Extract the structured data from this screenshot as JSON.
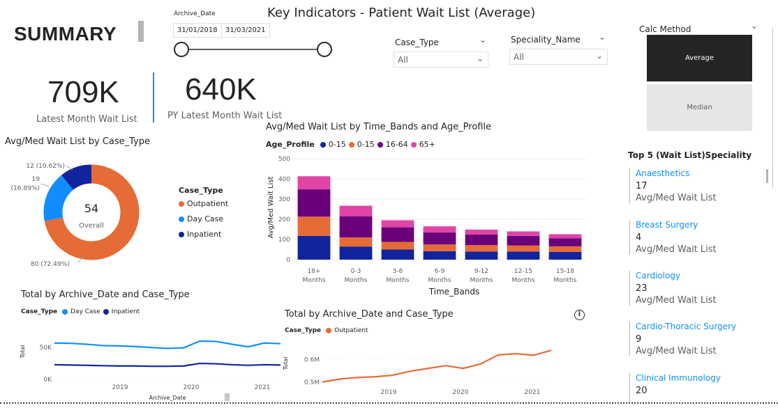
{
  "page": {
    "title": "Key Indicators - Patient Wait List (Average)",
    "summary": "SUMMARY"
  },
  "kpis": {
    "latest_value": "709K",
    "latest_label": "Latest Month Wait List",
    "py_value": "640K",
    "py_label": "PY Latest Month Wait List"
  },
  "archive_date": {
    "label": "Archive_Date",
    "start": "31/01/2018",
    "end": "31/03/2021"
  },
  "case_type_slicer": {
    "label": "Case_Type",
    "value": "All"
  },
  "speciality_slicer": {
    "label": "Speciality_Name",
    "value": "All"
  },
  "calc_method": {
    "label": "Calc Method",
    "options": [
      "Average",
      "Median"
    ],
    "selected": "Average"
  },
  "colors": {
    "outpatient": "#e66c37",
    "day_case": "#118dff",
    "inpatient": "#12239e",
    "age_0_15_a": "#12239e",
    "age_0_15_b": "#e66c37",
    "age_16_64": "#6b007b",
    "age_65_plus": "#e044a7"
  },
  "donut": {
    "title": "Avg/Med Wait List by Case_Type",
    "center_value": "54",
    "center_label": "Overall",
    "legend_title": "Case_Type",
    "legend": [
      "Outpatient",
      "Day Case",
      "Inpatient"
    ],
    "labels": [
      "12 (10.62%)",
      "19",
      "(16.89%)",
      "80 (72.49%)"
    ]
  },
  "top5": {
    "title": "Top 5 (Wait List)Speciality",
    "metric_label": "Avg/Med Wait List",
    "items": [
      {
        "name": "Anaesthetics",
        "value": "17"
      },
      {
        "name": "Breast Surgery",
        "value": "4"
      },
      {
        "name": "Cardiology",
        "value": "23"
      },
      {
        "name": "Cardio-Thoracic Surgery",
        "value": "9"
      },
      {
        "name": "Clinical Immunology",
        "value": "20"
      }
    ]
  },
  "bar_titles": {
    "title": "Avg/Med Wait List by Time_Bands and Age_Profile",
    "legend_title": "Age_Profile",
    "legend": [
      "0-15",
      "0-15",
      "16-64",
      "65+"
    ],
    "xlabel": "Time_Bands",
    "ylabel": "Avg/Med Wait List"
  },
  "line1_titles": {
    "title": "Total by Archive_Date and Case_Type",
    "legend_title": "Case_Type",
    "legend": [
      "Day Case",
      "Inpatient"
    ],
    "xlabel": "Archive_Date",
    "ylabel": "Total"
  },
  "line2_titles": {
    "title": "Total by Archive_Date and Case_Type",
    "legend_title": "Case_Type",
    "legend": [
      "Outpatient"
    ],
    "ylabel": "Total"
  },
  "chart_data": [
    {
      "type": "pie",
      "title": "Avg/Med Wait List by Case_Type",
      "categories": [
        "Outpatient",
        "Day Case",
        "Inpatient"
      ],
      "values": [
        80,
        19,
        12
      ],
      "percent_labels": [
        "72.49%",
        "16.89%",
        "10.62%"
      ],
      "center": "54"
    },
    {
      "type": "bar",
      "title": "Avg/Med Wait List by Time_Bands and Age_Profile",
      "categories": [
        "18+ Months",
        "0-3 Months",
        "3-6 Months",
        "6-9 Months",
        "9-12 Months",
        "12-15 Months",
        "15-18 Months"
      ],
      "series": [
        {
          "name": "0-15",
          "values": [
            118,
            65,
            50,
            42,
            40,
            40,
            38
          ]
        },
        {
          "name": "0-15",
          "values": [
            95,
            45,
            38,
            33,
            32,
            30,
            28
          ]
        },
        {
          "name": "16-64",
          "values": [
            135,
            105,
            72,
            60,
            52,
            48,
            40
          ]
        },
        {
          "name": "65+",
          "values": [
            65,
            52,
            35,
            30,
            25,
            22,
            20
          ]
        }
      ],
      "ylim": [
        0,
        500
      ],
      "yticks": [
        0,
        100,
        200,
        300,
        400,
        500
      ],
      "xlabel": "Time_Bands",
      "ylabel": "Avg/Med Wait List"
    },
    {
      "type": "line",
      "title": "Total by Archive_Date and Case_Type",
      "x": [
        "2018-02",
        "2018-05",
        "2018-08",
        "2018-11",
        "2019-02",
        "2019-05",
        "2019-08",
        "2019-11",
        "2020-02",
        "2020-04",
        "2020-05",
        "2020-08",
        "2020-11",
        "2021-01",
        "2021-03"
      ],
      "series": [
        {
          "name": "Day Case",
          "values": [
            57000,
            56500,
            55000,
            53000,
            52500,
            51500,
            50000,
            48500,
            49500,
            60000,
            59500,
            55000,
            51000,
            57000,
            56000
          ]
        },
        {
          "name": "Inpatient",
          "values": [
            23000,
            22500,
            22000,
            21500,
            21000,
            21000,
            20500,
            20500,
            21000,
            25000,
            24500,
            23000,
            22000,
            23000,
            22500
          ]
        }
      ],
      "yticks": [
        "0K",
        "50K"
      ],
      "xticks": [
        "2019",
        "2020",
        "2021"
      ],
      "xlabel": "Archive_Date",
      "ylabel": "Total"
    },
    {
      "type": "line",
      "title": "Total by Archive_Date and Case_Type",
      "x": [
        "2018-02",
        "2018-05",
        "2018-08",
        "2018-11",
        "2019-02",
        "2019-05",
        "2019-08",
        "2019-11",
        "2020-02",
        "2020-05",
        "2020-08",
        "2020-11",
        "2021-01",
        "2021-03"
      ],
      "series": [
        {
          "name": "Outpatient",
          "values": [
            500000,
            513000,
            520000,
            523000,
            530000,
            548000,
            560000,
            572000,
            560000,
            580000,
            620000,
            625000,
            618000,
            640000
          ]
        }
      ],
      "yticks": [
        "0.5M",
        "0.6M"
      ],
      "xticks": [
        "2019",
        "2020",
        "2021"
      ],
      "ylabel": "Total"
    }
  ]
}
